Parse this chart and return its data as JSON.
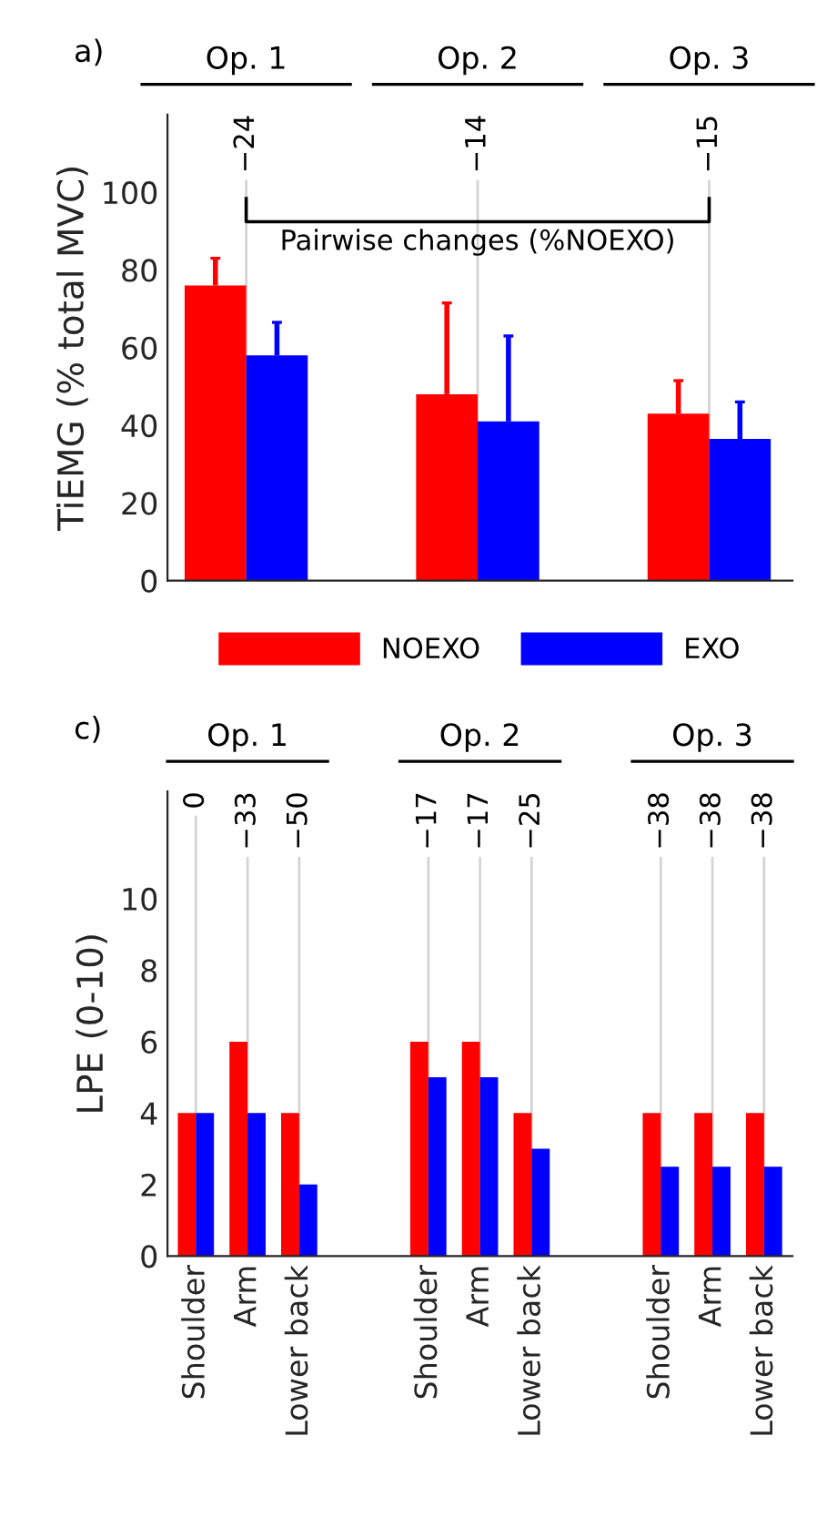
{
  "chart_data": [
    {
      "type": "bar",
      "title": "a)",
      "ylabel": "TiEMG (% total MVC)",
      "categories": [
        "Op. 1",
        "Op. 2",
        "Op. 3"
      ],
      "series": [
        {
          "name": "NOEXO",
          "color": "#ff0000",
          "values": [
            76,
            48,
            43
          ],
          "errors": [
            [
              76,
              83
            ],
            [
              48,
              71.5
            ],
            [
              43,
              51.5
            ]
          ]
        },
        {
          "name": "EXO",
          "color": "#0000ff",
          "values": [
            58,
            41,
            36.5
          ],
          "errors": [
            [
              58,
              66.5
            ],
            [
              41,
              63
            ],
            [
              36.5,
              46
            ]
          ]
        }
      ],
      "ylim": [
        0,
        120
      ],
      "yticks": [
        0,
        20,
        40,
        60,
        80,
        100
      ],
      "legend": "bottom",
      "grid": false,
      "annotations": [
        "Pairwise changes (%NOEXO)",
        "−24",
        "−14",
        "−15"
      ]
    },
    {
      "type": "bar",
      "title": "c)",
      "ylabel": "LPE (0-10)",
      "categories": [
        "Shoulder",
        "Arm",
        "Lower back",
        "Shoulder",
        "Arm",
        "Lower back",
        "Shoulder",
        "Arm",
        "Lower back"
      ],
      "series": [
        {
          "color": "#ff0000",
          "values": [
            4,
            6,
            4,
            6,
            6,
            4,
            4,
            4,
            4
          ]
        },
        {
          "color": "#0000ff",
          "values": [
            4,
            4,
            2,
            5,
            5,
            3,
            2.5,
            2.5,
            2.5
          ]
        }
      ],
      "ylim": [
        0,
        13
      ],
      "yticks": [
        0,
        2,
        4,
        6,
        8,
        10
      ],
      "grid": false,
      "annotations": [
        "Op. 1",
        "Op. 2",
        "Op. 3",
        "0",
        "−33",
        "−50",
        "−17",
        "−17",
        "−25",
        "−38",
        "−38",
        "−38"
      ]
    }
  ]
}
